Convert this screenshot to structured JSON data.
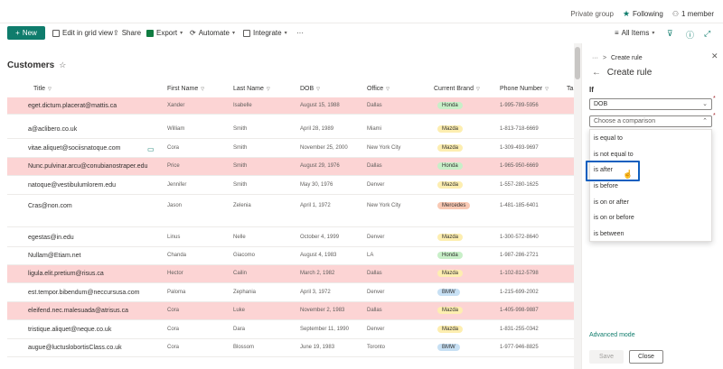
{
  "topbar": {
    "group_label": "Private group",
    "following_label": "Following",
    "members_label": "1 member"
  },
  "commandbar": {
    "new_label": "New",
    "edit_grid_label": "Edit in grid view",
    "share_label": "Share",
    "export_label": "Export",
    "automate_label": "Automate",
    "integrate_label": "Integrate",
    "more_label": "···",
    "view_label": "All Items"
  },
  "list": {
    "title": "Customers",
    "columns": [
      "Title",
      "First Name",
      "Last Name",
      "DOB",
      "Office",
      "Current Brand",
      "Phone Number",
      "Ta"
    ],
    "rows": [
      {
        "title": "eget.dictum.placerat@mattis.ca",
        "first": "Xander",
        "last": "Isabelle",
        "dob": "August 15, 1988",
        "office": "Dallas",
        "brand": "Honda",
        "phone": "1-995-789-5956",
        "highlight": true
      },
      {
        "title": "a@aclibero.co.uk",
        "first": "William",
        "last": "Smith",
        "dob": "April 28, 1989",
        "office": "Miami",
        "brand": "Mazda",
        "phone": "1-813-718-6669",
        "highlight": false
      },
      {
        "title": "vitae.aliquet@sociisnatoque.com",
        "first": "Cora",
        "last": "Smith",
        "dob": "November 25, 2000",
        "office": "New York City",
        "brand": "Mazda",
        "phone": "1-309-493-9697",
        "highlight": false
      },
      {
        "title": "Nunc.pulvinar.arcu@conubianostraper.edu",
        "first": "Price",
        "last": "Smith",
        "dob": "August 29, 1976",
        "office": "Dallas",
        "brand": "Honda",
        "phone": "1-965-950-6669",
        "highlight": true
      },
      {
        "title": "natoque@vestibulumlorem.edu",
        "first": "Jennifer",
        "last": "Smith",
        "dob": "May 30, 1976",
        "office": "Denver",
        "brand": "Mazda",
        "phone": "1-557-280-1625",
        "highlight": false
      },
      {
        "title": "Cras@non.com",
        "first": "Jason",
        "last": "Zelenia",
        "dob": "April 1, 1972",
        "office": "New York City",
        "brand": "Mercedes",
        "phone": "1-481-185-6401",
        "highlight": false
      },
      {
        "title": "egestas@in.edu",
        "first": "Linus",
        "last": "Nelle",
        "dob": "October 4, 1999",
        "office": "Denver",
        "brand": "Mazda",
        "phone": "1-300-572-8640",
        "highlight": false
      },
      {
        "title": "Nullam@Etiam.net",
        "first": "Chanda",
        "last": "Giacomo",
        "dob": "August 4, 1983",
        "office": "LA",
        "brand": "Honda",
        "phone": "1-987-286-2721",
        "highlight": false
      },
      {
        "title": "ligula.elit.pretium@risus.ca",
        "first": "Hector",
        "last": "Cailin",
        "dob": "March 2, 1982",
        "office": "Dallas",
        "brand": "Mazda",
        "phone": "1-102-812-5798",
        "highlight": true
      },
      {
        "title": "est.tempor.bibendum@neccursusa.com",
        "first": "Paloma",
        "last": "Zephania",
        "dob": "April 3, 1972",
        "office": "Denver",
        "brand": "BMW",
        "phone": "1-215-699-2002",
        "highlight": false
      },
      {
        "title": "eleifend.nec.malesuada@atrisus.ca",
        "first": "Cora",
        "last": "Luke",
        "dob": "November 2, 1983",
        "office": "Dallas",
        "brand": "Mazda",
        "phone": "1-405-998-9887",
        "highlight": true
      },
      {
        "title": "tristique.aliquet@neque.co.uk",
        "first": "Cora",
        "last": "Dara",
        "dob": "September 11, 1990",
        "office": "Denver",
        "brand": "Mazda",
        "phone": "1-831-255-0342",
        "highlight": false
      },
      {
        "title": "augue@luctuslobortisClass.co.uk",
        "first": "Cora",
        "last": "Blossom",
        "dob": "June 19, 1983",
        "office": "Toronto",
        "brand": "BMW",
        "phone": "1-977-946-8825",
        "highlight": false
      }
    ]
  },
  "panel": {
    "breadcrumb_more": "···",
    "breadcrumb_sep": ">",
    "breadcrumb_label": "Create rule",
    "heading": "Create rule",
    "if_label": "If",
    "field_value": "DOB",
    "comparison_placeholder": "Choose a comparison",
    "options": [
      "is equal to",
      "is not equal to",
      "is after",
      "is before",
      "is on or after",
      "is on or before",
      "is between"
    ],
    "advanced_mode": "Advanced mode",
    "save_label": "Save",
    "close_label": "Close"
  },
  "colors": {
    "accent": "#0f7c6c",
    "highlight_row": "#fcd4d4",
    "selection_border": "#0f5fbf",
    "badge_honda": "#c8efc8",
    "badge_mazda": "#fdeeb0",
    "badge_mercedes": "#f9c9b4",
    "badge_bmw": "#c7e0f4"
  }
}
